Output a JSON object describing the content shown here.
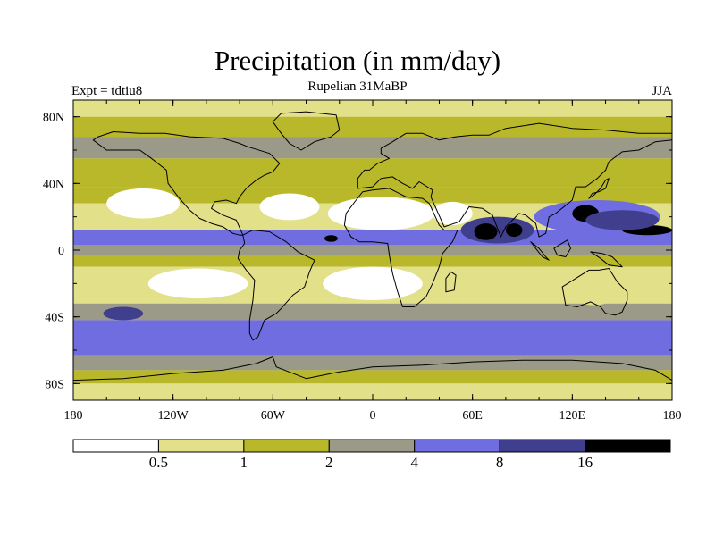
{
  "title": "Precipitation (in mm/day)",
  "subtitle": "Rupelian  31MaBP",
  "expt_label": "Expt = tdtiu8",
  "season": "JJA",
  "chart_data": {
    "type": "heatmap",
    "variable": "Precipitation",
    "units": "mm/day",
    "projection": "cylindrical equidistant",
    "x_range": [
      -180,
      180
    ],
    "y_range": [
      -90,
      90
    ],
    "x_ticks": [
      {
        "value": -180,
        "label": "180"
      },
      {
        "value": -120,
        "label": "120W"
      },
      {
        "value": -60,
        "label": "60W"
      },
      {
        "value": 0,
        "label": "0"
      },
      {
        "value": 60,
        "label": "60E"
      },
      {
        "value": 120,
        "label": "120E"
      },
      {
        "value": 180,
        "label": "180"
      }
    ],
    "y_ticks": [
      {
        "value": 80,
        "label": "80N"
      },
      {
        "value": 40,
        "label": "40N"
      },
      {
        "value": 0,
        "label": "0"
      },
      {
        "value": -40,
        "label": "40S"
      },
      {
        "value": -80,
        "label": "80S"
      }
    ],
    "levels": [
      0.5,
      1,
      2,
      4,
      8,
      16
    ],
    "level_labels": [
      "0.5",
      "1",
      "2",
      "4",
      "8",
      "16"
    ],
    "colors": [
      "#ffffff",
      "#e3e08a",
      "#b9b82a",
      "#9b9987",
      "#6f6ddf",
      "#3f3f8e",
      "#000000"
    ],
    "zonal_bands": [
      {
        "lat_from": 90,
        "lat_to": 80,
        "category": 1
      },
      {
        "lat_from": 80,
        "lat_to": 68,
        "category": 2
      },
      {
        "lat_from": 68,
        "lat_to": 55,
        "category": 3
      },
      {
        "lat_from": 55,
        "lat_to": 38,
        "category": 2
      },
      {
        "lat_from": 38,
        "lat_to": 28,
        "category": 2
      },
      {
        "lat_from": 28,
        "lat_to": 12,
        "category": 1
      },
      {
        "lat_from": 12,
        "lat_to": 3,
        "category": 4
      },
      {
        "lat_from": 3,
        "lat_to": -3,
        "category": 3
      },
      {
        "lat_from": -3,
        "lat_to": -10,
        "category": 2
      },
      {
        "lat_from": -10,
        "lat_to": -32,
        "category": 1
      },
      {
        "lat_from": -32,
        "lat_to": -42,
        "category": 3
      },
      {
        "lat_from": -42,
        "lat_to": -63,
        "category": 4
      },
      {
        "lat_from": -63,
        "lat_to": -72,
        "category": 3
      },
      {
        "lat_from": -72,
        "lat_to": -80,
        "category": 2
      },
      {
        "lat_from": -80,
        "lat_to": -90,
        "category": 1
      }
    ],
    "regions": [
      {
        "name": "north-pacific-dry",
        "lon": -138,
        "lat": 28,
        "rx": 22,
        "ry": 9,
        "category": 0
      },
      {
        "name": "north-atlantic-dry",
        "lon": -50,
        "lat": 26,
        "rx": 18,
        "ry": 8,
        "category": 0
      },
      {
        "name": "sahara-dry",
        "lon": 5,
        "lat": 22,
        "rx": 32,
        "ry": 10,
        "category": 0
      },
      {
        "name": "arabia-dry",
        "lon": 48,
        "lat": 22,
        "rx": 12,
        "ry": 7,
        "category": 0
      },
      {
        "name": "south-pacific-dry",
        "lon": -105,
        "lat": -20,
        "rx": 30,
        "ry": 9,
        "category": 0
      },
      {
        "name": "south-atlantic-africa-dry",
        "lon": 0,
        "lat": -20,
        "rx": 30,
        "ry": 10,
        "category": 0
      },
      {
        "name": "west-pacific-wet",
        "lon": 135,
        "lat": 20,
        "rx": 38,
        "ry": 10,
        "category": 4
      },
      {
        "name": "indian-monsoon-wet",
        "lon": 75,
        "lat": 12,
        "rx": 22,
        "ry": 8,
        "category": 5
      },
      {
        "name": "indian-monsoon-core",
        "lon": 68,
        "lat": 11,
        "rx": 7,
        "ry": 5,
        "category": 6
      },
      {
        "name": "bay-of-bengal-core",
        "lon": 85,
        "lat": 12,
        "rx": 5,
        "ry": 4,
        "category": 6
      },
      {
        "name": "west-pacific-core",
        "lon": 128,
        "lat": 22,
        "rx": 8,
        "ry": 5,
        "category": 6
      },
      {
        "name": "west-pacific-core-2",
        "lon": 165,
        "lat": 12,
        "rx": 15,
        "ry": 3,
        "category": 6
      },
      {
        "name": "west-pacific-deep",
        "lon": 150,
        "lat": 18,
        "rx": 22,
        "ry": 6,
        "category": 5
      },
      {
        "name": "atlantic-itcz-core",
        "lon": -25,
        "lat": 7,
        "rx": 4,
        "ry": 2,
        "category": 6
      },
      {
        "name": "australia-dry",
        "lon": 133,
        "lat": -25,
        "rx": 14,
        "ry": 8,
        "category": 1
      },
      {
        "name": "south-indian-dry",
        "lon": 70,
        "lat": -20,
        "rx": 22,
        "ry": 8,
        "category": 1
      },
      {
        "name": "southern-ocean-dark",
        "lon": -150,
        "lat": -38,
        "rx": 12,
        "ry": 4,
        "category": 5
      }
    ],
    "coastlines": [
      {
        "name": "north-america",
        "points": [
          [
            -168,
            66
          ],
          [
            -160,
            60
          ],
          [
            -150,
            60
          ],
          [
            -140,
            60
          ],
          [
            -133,
            55
          ],
          [
            -124,
            48
          ],
          [
            -123,
            40
          ],
          [
            -117,
            32
          ],
          [
            -110,
            24
          ],
          [
            -104,
            19
          ],
          [
            -97,
            16
          ],
          [
            -90,
            14
          ],
          [
            -84,
            10
          ],
          [
            -80,
            9
          ],
          [
            -78,
            9
          ],
          [
            -82,
            18
          ],
          [
            -90,
            21
          ],
          [
            -97,
            25
          ],
          [
            -95,
            29
          ],
          [
            -88,
            30
          ],
          [
            -82,
            28
          ],
          [
            -80,
            32
          ],
          [
            -76,
            37
          ],
          [
            -70,
            42
          ],
          [
            -65,
            45
          ],
          [
            -60,
            47
          ],
          [
            -56,
            52
          ],
          [
            -62,
            58
          ],
          [
            -75,
            62
          ],
          [
            -80,
            64
          ],
          [
            -90,
            67
          ],
          [
            -110,
            68
          ],
          [
            -125,
            70
          ],
          [
            -140,
            70
          ],
          [
            -156,
            71
          ],
          [
            -165,
            68
          ],
          [
            -168,
            66
          ]
        ]
      },
      {
        "name": "greenland",
        "points": [
          [
            -55,
            82
          ],
          [
            -40,
            83
          ],
          [
            -22,
            81
          ],
          [
            -20,
            72
          ],
          [
            -25,
            68
          ],
          [
            -35,
            65
          ],
          [
            -43,
            60
          ],
          [
            -50,
            64
          ],
          [
            -55,
            70
          ],
          [
            -60,
            77
          ],
          [
            -55,
            82
          ]
        ]
      },
      {
        "name": "south-america",
        "points": [
          [
            -78,
            9
          ],
          [
            -72,
            12
          ],
          [
            -62,
            11
          ],
          [
            -52,
            5
          ],
          [
            -45,
            -1
          ],
          [
            -35,
            -6
          ],
          [
            -38,
            -13
          ],
          [
            -41,
            -22
          ],
          [
            -48,
            -27
          ],
          [
            -55,
            -35
          ],
          [
            -58,
            -38
          ],
          [
            -65,
            -42
          ],
          [
            -67,
            -47
          ],
          [
            -69,
            -52
          ],
          [
            -72,
            -54
          ],
          [
            -74,
            -50
          ],
          [
            -74,
            -42
          ],
          [
            -72,
            -30
          ],
          [
            -71,
            -18
          ],
          [
            -76,
            -12
          ],
          [
            -81,
            -5
          ],
          [
            -80,
            0
          ],
          [
            -77,
            4
          ],
          [
            -78,
            9
          ]
        ]
      },
      {
        "name": "africa",
        "points": [
          [
            -17,
            15
          ],
          [
            -16,
            22
          ],
          [
            -10,
            30
          ],
          [
            -6,
            35
          ],
          [
            0,
            36
          ],
          [
            10,
            37
          ],
          [
            20,
            32
          ],
          [
            30,
            31
          ],
          [
            34,
            28
          ],
          [
            40,
            15
          ],
          [
            43,
            12
          ],
          [
            51,
            12
          ],
          [
            48,
            5
          ],
          [
            42,
            -2
          ],
          [
            40,
            -10
          ],
          [
            36,
            -20
          ],
          [
            32,
            -28
          ],
          [
            25,
            -34
          ],
          [
            18,
            -34
          ],
          [
            15,
            -25
          ],
          [
            12,
            -14
          ],
          [
            10,
            -3
          ],
          [
            9,
            4
          ],
          [
            0,
            5
          ],
          [
            -8,
            5
          ],
          [
            -13,
            8
          ],
          [
            -17,
            15
          ]
        ]
      },
      {
        "name": "eurasia",
        "points": [
          [
            -9,
            43
          ],
          [
            -9,
            37
          ],
          [
            0,
            38
          ],
          [
            5,
            43
          ],
          [
            12,
            44
          ],
          [
            18,
            40
          ],
          [
            24,
            37
          ],
          [
            28,
            41
          ],
          [
            36,
            36
          ],
          [
            35,
            32
          ],
          [
            43,
            14
          ],
          [
            52,
            17
          ],
          [
            56,
            23
          ],
          [
            58,
            26
          ],
          [
            66,
            25
          ],
          [
            72,
            21
          ],
          [
            77,
            8
          ],
          [
            80,
            14
          ],
          [
            88,
            22
          ],
          [
            92,
            21
          ],
          [
            98,
            16
          ],
          [
            100,
            8
          ],
          [
            104,
            10
          ],
          [
            106,
            20
          ],
          [
            110,
            22
          ],
          [
            120,
            30
          ],
          [
            122,
            38
          ],
          [
            128,
            38
          ],
          [
            135,
            43
          ],
          [
            140,
            48
          ],
          [
            142,
            53
          ],
          [
            150,
            59
          ],
          [
            160,
            60
          ],
          [
            170,
            65
          ],
          [
            180,
            66
          ],
          [
            180,
            70
          ],
          [
            160,
            70
          ],
          [
            140,
            72
          ],
          [
            120,
            73
          ],
          [
            100,
            76
          ],
          [
            80,
            73
          ],
          [
            70,
            69
          ],
          [
            60,
            69
          ],
          [
            50,
            68
          ],
          [
            40,
            66
          ],
          [
            30,
            70
          ],
          [
            20,
            70
          ],
          [
            12,
            65
          ],
          [
            5,
            61
          ],
          [
            5,
            58
          ],
          [
            10,
            55
          ],
          [
            3,
            52
          ],
          [
            -2,
            48
          ],
          [
            -5,
            48
          ],
          [
            -9,
            43
          ]
        ]
      },
      {
        "name": "australia",
        "points": [
          [
            114,
            -22
          ],
          [
            116,
            -33
          ],
          [
            123,
            -34
          ],
          [
            131,
            -31
          ],
          [
            137,
            -34
          ],
          [
            140,
            -38
          ],
          [
            146,
            -39
          ],
          [
            150,
            -37
          ],
          [
            153,
            -30
          ],
          [
            153,
            -25
          ],
          [
            147,
            -19
          ],
          [
            142,
            -11
          ],
          [
            136,
            -12
          ],
          [
            130,
            -12
          ],
          [
            122,
            -17
          ],
          [
            114,
            -22
          ]
        ]
      },
      {
        "name": "antarctica",
        "points": [
          [
            -180,
            -78
          ],
          [
            -150,
            -77
          ],
          [
            -120,
            -74
          ],
          [
            -90,
            -72
          ],
          [
            -70,
            -68
          ],
          [
            -60,
            -64
          ],
          [
            -58,
            -70
          ],
          [
            -40,
            -77
          ],
          [
            -20,
            -73
          ],
          [
            0,
            -70
          ],
          [
            30,
            -69
          ],
          [
            60,
            -67
          ],
          [
            90,
            -66
          ],
          [
            120,
            -66
          ],
          [
            150,
            -68
          ],
          [
            170,
            -72
          ],
          [
            180,
            -78
          ]
        ]
      },
      {
        "name": "madagascar",
        "points": [
          [
            44,
            -25
          ],
          [
            44,
            -17
          ],
          [
            47,
            -13
          ],
          [
            50,
            -15
          ],
          [
            49,
            -24
          ],
          [
            44,
            -25
          ]
        ]
      },
      {
        "name": "japan",
        "points": [
          [
            130,
            31
          ],
          [
            132,
            34
          ],
          [
            136,
            35
          ],
          [
            140,
            37
          ],
          [
            142,
            43
          ],
          [
            140,
            42
          ],
          [
            137,
            37
          ],
          [
            133,
            33
          ],
          [
            130,
            31
          ]
        ]
      },
      {
        "name": "indonesia-sumatra",
        "points": [
          [
            95,
            5
          ],
          [
            100,
            1
          ],
          [
            104,
            -4
          ],
          [
            106,
            -6
          ],
          [
            102,
            -4
          ],
          [
            98,
            1
          ],
          [
            95,
            5
          ]
        ]
      },
      {
        "name": "borneo",
        "points": [
          [
            109,
            1
          ],
          [
            111,
            -3
          ],
          [
            116,
            -4
          ],
          [
            119,
            1
          ],
          [
            117,
            6
          ],
          [
            112,
            3
          ],
          [
            109,
            1
          ]
        ]
      },
      {
        "name": "new-guinea",
        "points": [
          [
            131,
            -1
          ],
          [
            138,
            -2
          ],
          [
            144,
            -4
          ],
          [
            150,
            -10
          ],
          [
            142,
            -9
          ],
          [
            137,
            -5
          ],
          [
            131,
            -1
          ]
        ]
      }
    ]
  }
}
